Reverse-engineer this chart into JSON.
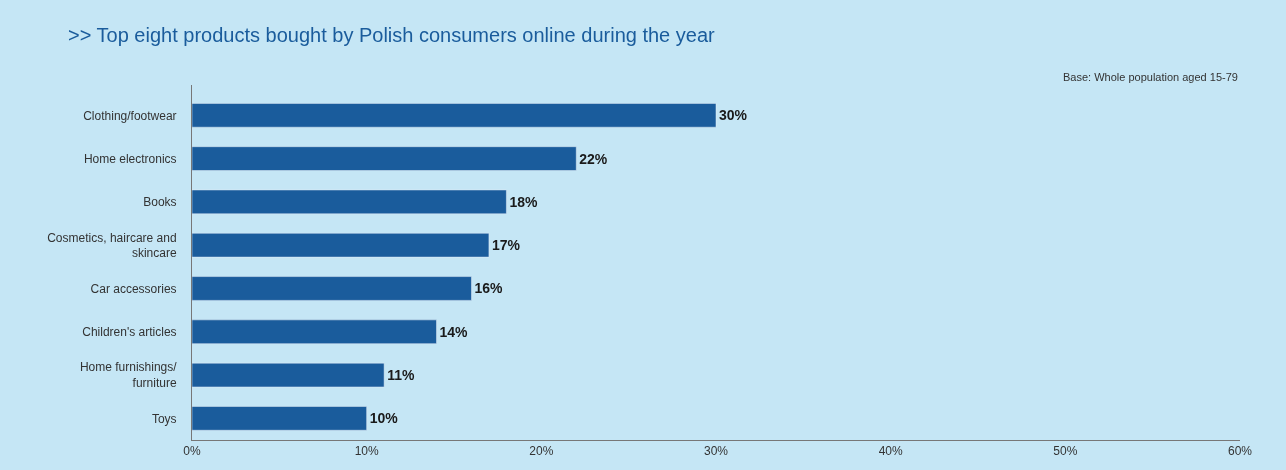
{
  "chart_data": {
    "type": "bar",
    "orientation": "horizontal",
    "title": ">> Top eight products bought by Polish consumers online during the year",
    "annotations": [
      "Base: Whole population aged 15-79"
    ],
    "categories": [
      "Clothing/footwear",
      "Home electronics",
      "Books",
      "Cosmetics, haircare and skincare",
      "Car accessories",
      "Children's articles",
      "Home furnishings/furniture",
      "Toys"
    ],
    "values": [
      30,
      22,
      18,
      17,
      16,
      14,
      11,
      10
    ],
    "value_labels": [
      "30%",
      "22%",
      "18%",
      "17%",
      "16%",
      "14%",
      "11%",
      "10%"
    ],
    "color": "#1a5c9c",
    "xlim": [
      0,
      60
    ],
    "xticks": [
      {
        "value": 0,
        "label": "0%"
      },
      {
        "value": 10,
        "label": "10%"
      },
      {
        "value": 20,
        "label": "20%"
      },
      {
        "value": 30,
        "label": "30%"
      },
      {
        "value": 40,
        "label": "40%"
      },
      {
        "value": 50,
        "label": "50%"
      },
      {
        "value": 60,
        "label": "60%"
      }
    ],
    "grid": false
  }
}
